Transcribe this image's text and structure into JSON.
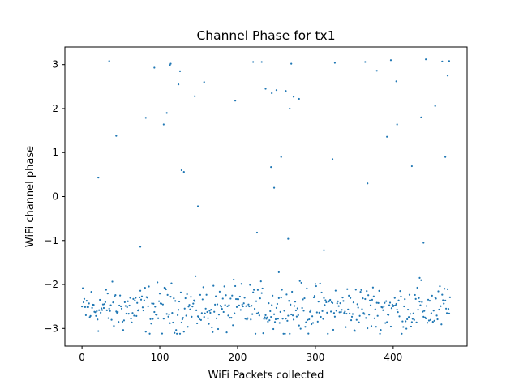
{
  "chart_data": {
    "type": "scatter",
    "title": "Channel Phase for tx1",
    "xlabel": "WiFi Packets collected",
    "ylabel": "WiFi channel phase",
    "xlim": [
      -22,
      495
    ],
    "ylim": [
      -3.4,
      3.4
    ],
    "xticks": [
      0,
      100,
      200,
      300,
      400
    ],
    "yticks": [
      -3,
      -2,
      -1,
      0,
      1,
      2,
      3
    ],
    "grid": false,
    "marker_color": "#1f77b4",
    "series": [
      {
        "x": [
          21,
          35,
          44,
          75,
          82,
          93,
          105,
          109,
          113,
          114,
          124,
          126,
          128,
          131,
          145,
          149,
          157,
          197,
          220,
          225,
          231,
          236,
          243,
          244,
          247,
          250,
          253,
          256,
          262,
          265,
          267,
          269,
          272,
          279,
          311,
          322,
          325,
          364,
          367,
          379,
          392,
          397,
          404,
          405,
          424,
          434,
          436,
          439,
          442,
          454,
          463,
          467,
          470,
          472
        ],
        "y": [
          0.43,
          3.08,
          1.38,
          -1.14,
          1.79,
          2.93,
          1.64,
          1.9,
          2.99,
          3.02,
          2.55,
          2.85,
          0.6,
          0.56,
          2.28,
          -0.22,
          2.6,
          2.18,
          3.06,
          -0.82,
          3.06,
          2.45,
          0.67,
          2.35,
          0.2,
          2.42,
          -1.72,
          0.9,
          2.4,
          -0.96,
          2.0,
          3.02,
          2.27,
          2.22,
          -1.22,
          0.85,
          3.04,
          3.06,
          0.3,
          2.86,
          1.36,
          3.1,
          2.62,
          1.64,
          0.69,
          -1.85,
          1.8,
          -1.05,
          3.12,
          2.06,
          3.07,
          0.9,
          2.75,
          3.08
        ]
      }
    ]
  }
}
